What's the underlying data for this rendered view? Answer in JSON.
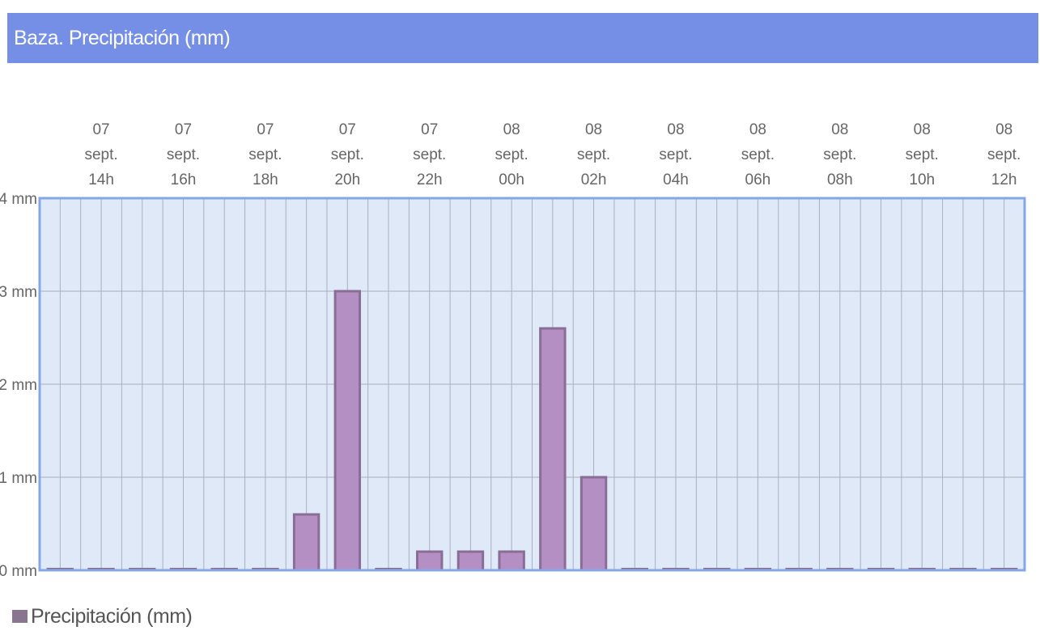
{
  "header": {
    "title": "Baza. Precipitación (mm)"
  },
  "legend": {
    "label": "Precipitación (mm)"
  },
  "colors": {
    "title_bg": "#758fe6",
    "plot_bg": "#dfe9f7",
    "plot_border": "#86a7e6",
    "grid": "#a9b0c2",
    "bar_fill": "#b48fc4",
    "bar_stroke": "#8a6d95",
    "legend_swatch": "#8a7590",
    "text": "#666666"
  },
  "chart_data": {
    "type": "bar",
    "title": "Baza. Precipitación (mm)",
    "xlabel": "",
    "ylabel": "",
    "ylim": [
      0,
      4
    ],
    "y_ticks": [
      "0 mm",
      "1 mm",
      "2 mm",
      "3 mm",
      "4 mm"
    ],
    "x_tick_labels": [
      [
        "07",
        "sept.",
        "14h"
      ],
      [
        "07",
        "sept.",
        "16h"
      ],
      [
        "07",
        "sept.",
        "18h"
      ],
      [
        "07",
        "sept.",
        "20h"
      ],
      [
        "07",
        "sept.",
        "22h"
      ],
      [
        "08",
        "sept.",
        "00h"
      ],
      [
        "08",
        "sept.",
        "02h"
      ],
      [
        "08",
        "sept.",
        "04h"
      ],
      [
        "08",
        "sept.",
        "06h"
      ],
      [
        "08",
        "sept.",
        "08h"
      ],
      [
        "08",
        "sept.",
        "10h"
      ],
      [
        "08",
        "sept.",
        "12h"
      ]
    ],
    "grid": true,
    "legend_position": "bottom-left",
    "series": [
      {
        "name": "Precipitación (mm)",
        "values": [
          0,
          0,
          0,
          0,
          0,
          0,
          0.6,
          3.0,
          0,
          0.2,
          0.2,
          0.2,
          2.6,
          1.0,
          0,
          0,
          0,
          0,
          0,
          0,
          0,
          0,
          0,
          0
        ]
      }
    ]
  }
}
